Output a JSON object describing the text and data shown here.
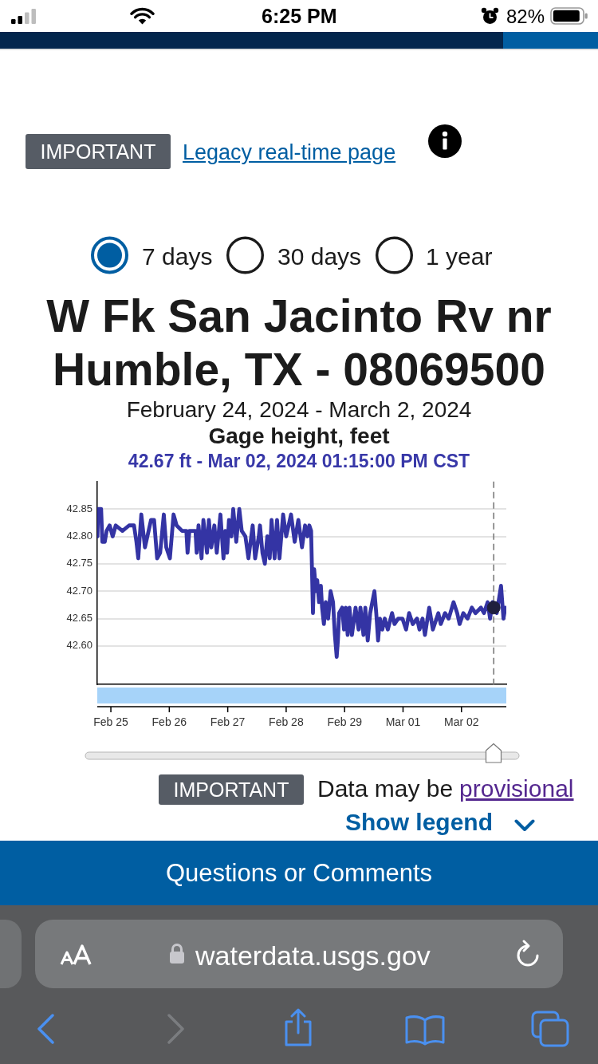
{
  "chart_data": {
    "type": "line",
    "title": "W Fk San Jacinto Rv nr Humble, TX - 08069500",
    "subtitle": "February 24, 2024 - March 2, 2024",
    "ylabel": "Gage height, feet",
    "annotations": [
      "6:25 PM",
      "82%",
      "IMPORTANT",
      "Legacy real-time page",
      "7 days",
      "30 days",
      "1 year",
      "42.67 ft - Mar 02, 2024 01:15:00 PM CST",
      "IMPORTANT",
      "Data may be",
      "provisional",
      "Show legend",
      "Questions or Comments",
      "waterdata.usgs.gov"
    ],
    "xlim": [
      "2024-02-24T18:25",
      "2024-03-02T18:25"
    ],
    "xticks": [
      {
        "value": "2024-02-25",
        "label": "Feb 25"
      },
      {
        "value": "2024-02-26",
        "label": "Feb 26"
      },
      {
        "value": "2024-02-27",
        "label": "Feb 27"
      },
      {
        "value": "2024-02-28",
        "label": "Feb 28"
      },
      {
        "value": "2024-02-29",
        "label": "Feb 29"
      },
      {
        "value": "2024-03-01",
        "label": "Mar 01"
      },
      {
        "value": "2024-03-02",
        "label": "Mar 02"
      }
    ],
    "ylim": [
      42.53,
      42.9
    ],
    "yticks": [
      {
        "value": 42.6,
        "label": "42.60"
      },
      42.65,
      {
        "value": 42.7,
        "label": "42.70"
      },
      42.75,
      {
        "value": 42.8,
        "label": "42.80"
      },
      42.85
    ],
    "grid": "y",
    "ref_lines": [
      {
        "axis": "x",
        "value": "2024-03-02T13:15",
        "color": "#7a7a7a",
        "line_style": "dashed"
      }
    ],
    "series": [
      {
        "type": "line",
        "color": "#3434a4",
        "marker": "none",
        "x": [
          "2024-02-24T18:30",
          "2024-02-24T18:45",
          "2024-02-24T20:00",
          "2024-02-24T20:30",
          "2024-02-24T21:30",
          "2024-02-24T22:15",
          "2024-02-24T23:30",
          "2024-02-25T00:45",
          "2024-02-25T02:00",
          "2024-02-25T04:45",
          "2024-02-25T07:30",
          "2024-02-25T09:30",
          "2024-02-25T10:30",
          "2024-02-25T11:15",
          "2024-02-25T12:30",
          "2024-02-25T14:00",
          "2024-02-25T15:00",
          "2024-02-25T16:30",
          "2024-02-25T17:45",
          "2024-02-25T19:00",
          "2024-02-25T20:15",
          "2024-02-25T21:45",
          "2024-02-25T22:45",
          "2024-02-26T00:15",
          "2024-02-26T01:45",
          "2024-02-26T03:00",
          "2024-02-26T05:15",
          "2024-02-26T07:00",
          "2024-02-26T07:30",
          "2024-02-26T08:15",
          "2024-02-26T10:45",
          "2024-02-26T11:15",
          "2024-02-26T12:00",
          "2024-02-26T13:15",
          "2024-02-26T14:00",
          "2024-02-26T15:30",
          "2024-02-26T16:15",
          "2024-02-26T17:15",
          "2024-02-26T18:30",
          "2024-02-26T19:30",
          "2024-02-26T21:00",
          "2024-02-26T22:15",
          "2024-02-26T23:00",
          "2024-02-26T23:45",
          "2024-02-27T00:30",
          "2024-02-27T01:30",
          "2024-02-27T02:15",
          "2024-02-27T03:30",
          "2024-02-27T04:45",
          "2024-02-27T05:45",
          "2024-02-27T07:15",
          "2024-02-27T08:30",
          "2024-02-27T10:15",
          "2024-02-27T11:15",
          "2024-02-27T12:45",
          "2024-02-27T13:15",
          "2024-02-27T14:15",
          "2024-02-27T15:15",
          "2024-02-27T16:15",
          "2024-02-27T17:15",
          "2024-02-27T18:00",
          "2024-02-27T19:15",
          "2024-02-27T20:15",
          "2024-02-27T21:15",
          "2024-02-27T22:45",
          "2024-02-28T00:00",
          "2024-02-28T02:00",
          "2024-02-28T03:30",
          "2024-02-28T05:00",
          "2024-02-28T06:30",
          "2024-02-28T07:45",
          "2024-02-28T08:45",
          "2024-02-28T09:30",
          "2024-02-28T10:15",
          "2024-02-28T11:00",
          "2024-02-28T11:30",
          "2024-02-28T12:15",
          "2024-02-28T12:45",
          "2024-02-28T13:30",
          "2024-02-28T14:15",
          "2024-02-28T14:45",
          "2024-02-28T15:30",
          "2024-02-28T16:15",
          "2024-02-28T17:15",
          "2024-02-28T18:15",
          "2024-02-28T19:15",
          "2024-02-28T20:00",
          "2024-02-28T20:45",
          "2024-02-28T21:15",
          "2024-02-28T21:45",
          "2024-02-28T23:00",
          "2024-02-28T23:45",
          "2024-02-29T00:30",
          "2024-02-29T01:15",
          "2024-02-29T02:00",
          "2024-02-29T03:00",
          "2024-02-29T04:30",
          "2024-02-29T05:45",
          "2024-02-29T06:30",
          "2024-02-29T07:45",
          "2024-02-29T08:30",
          "2024-02-29T09:30",
          "2024-02-29T10:30",
          "2024-02-29T12:15",
          "2024-02-29T13:00",
          "2024-02-29T13:45",
          "2024-02-29T14:30",
          "2024-02-29T15:30",
          "2024-02-29T16:30",
          "2024-02-29T17:45",
          "2024-02-29T19:30",
          "2024-02-29T20:30",
          "2024-02-29T22:00",
          "2024-02-29T23:45",
          "2024-03-01T01:15",
          "2024-03-01T02:30",
          "2024-03-01T04:00",
          "2024-03-01T05:45",
          "2024-03-01T06:45",
          "2024-03-01T08:00",
          "2024-03-01T09:00",
          "2024-03-01T10:45",
          "2024-03-01T12:15",
          "2024-03-01T14:30",
          "2024-03-01T15:30",
          "2024-03-01T17:15",
          "2024-03-01T18:45",
          "2024-03-01T20:45",
          "2024-03-01T22:15",
          "2024-03-01T23:15",
          "2024-03-02T00:45",
          "2024-03-02T02:30",
          "2024-03-02T04:15",
          "2024-03-02T05:45",
          "2024-03-02T08:00",
          "2024-03-02T09:15",
          "2024-03-02T10:45",
          "2024-03-02T11:45",
          "2024-03-02T12:45",
          "2024-03-02T13:15",
          "2024-03-02T14:30",
          "2024-03-02T16:15",
          "2024-03-02T17:15",
          "2024-03-02T18:00"
        ],
        "values": [
          42.8,
          42.85,
          42.85,
          42.79,
          42.79,
          42.81,
          42.82,
          42.8,
          42.82,
          42.81,
          42.82,
          42.82,
          42.79,
          42.76,
          42.84,
          42.78,
          42.8,
          42.83,
          42.83,
          42.76,
          42.77,
          42.84,
          42.78,
          42.76,
          42.84,
          42.82,
          42.81,
          42.81,
          42.77,
          42.81,
          42.81,
          42.77,
          42.82,
          42.76,
          42.83,
          42.77,
          42.83,
          42.78,
          42.82,
          42.77,
          42.84,
          42.76,
          42.81,
          42.77,
          42.83,
          42.8,
          42.85,
          42.79,
          42.85,
          42.81,
          42.8,
          42.76,
          42.82,
          42.76,
          42.8,
          42.82,
          42.77,
          42.75,
          42.8,
          42.76,
          42.83,
          42.76,
          42.83,
          42.76,
          42.84,
          42.8,
          42.84,
          42.79,
          42.83,
          42.78,
          42.82,
          42.8,
          42.82,
          42.81,
          42.66,
          42.74,
          42.7,
          42.72,
          42.68,
          42.71,
          42.67,
          42.64,
          42.68,
          42.65,
          42.7,
          42.68,
          42.62,
          42.58,
          42.61,
          42.66,
          42.67,
          42.63,
          42.67,
          42.62,
          42.67,
          42.62,
          42.67,
          42.63,
          42.67,
          42.62,
          42.67,
          42.61,
          42.66,
          42.7,
          42.66,
          42.61,
          42.65,
          42.63,
          42.65,
          42.63,
          42.66,
          42.64,
          42.65,
          42.65,
          42.63,
          42.66,
          42.64,
          42.65,
          42.63,
          42.65,
          42.62,
          42.67,
          42.63,
          42.66,
          42.64,
          42.66,
          42.65,
          42.68,
          42.66,
          42.64,
          42.66,
          42.65,
          42.67,
          42.66,
          42.67,
          42.66,
          42.68,
          42.65,
          42.68,
          42.67,
          42.66,
          42.71,
          42.65,
          42.67
        ]
      },
      {
        "type": "scatter",
        "color": "#1f1f3d",
        "marker": "circle",
        "x": [
          "2024-03-02T13:15"
        ],
        "values": [
          42.67
        ]
      }
    ]
  }
}
